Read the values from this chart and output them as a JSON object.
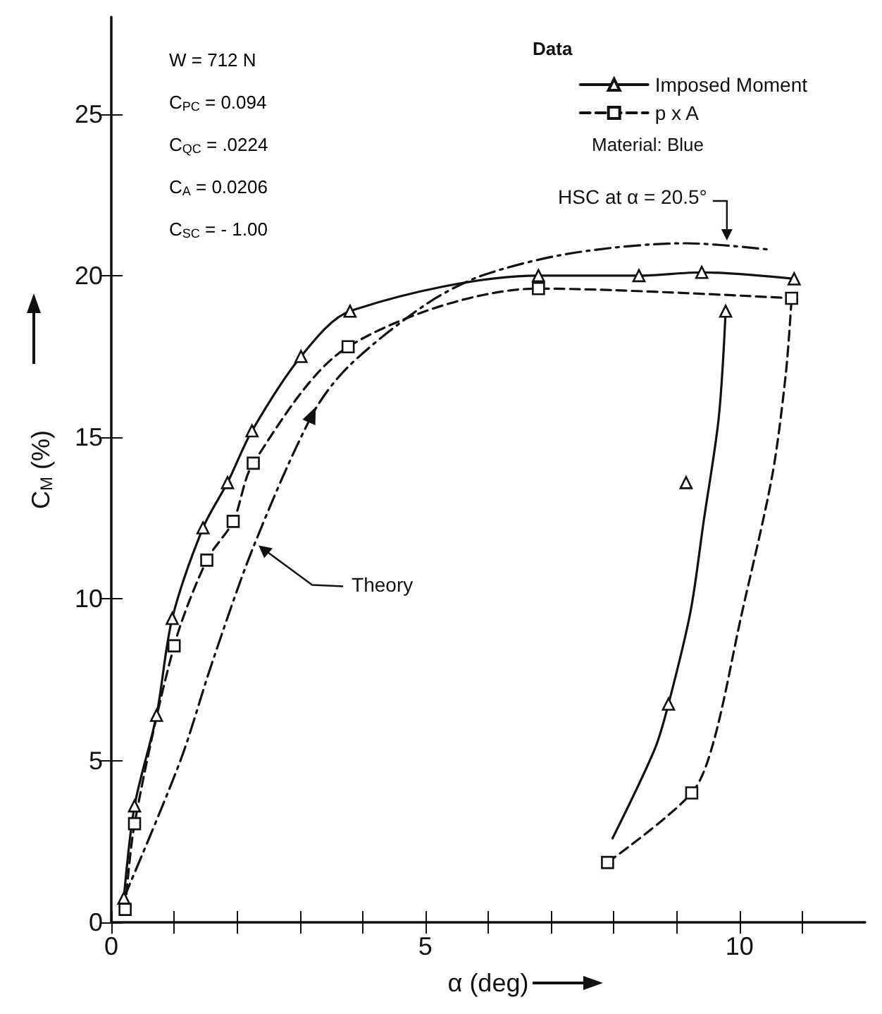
{
  "chart_data": {
    "type": "line",
    "xlabel": "α (deg)",
    "ylabel": "C$_{M}$ (%)",
    "legend_title": "Data",
    "xlim": [
      0,
      12
    ],
    "ylim": [
      0,
      28
    ],
    "xticks": [
      0,
      {
        "value": 1,
        "label": null
      },
      {
        "value": 2,
        "label": null
      },
      {
        "value": 3,
        "label": null
      },
      {
        "value": 4,
        "label": null
      },
      5,
      {
        "value": 6,
        "label": null
      },
      {
        "value": 7,
        "label": null
      },
      {
        "value": 8,
        "label": null
      },
      {
        "value": 9,
        "label": null
      },
      10,
      {
        "value": 11,
        "label": null
      }
    ],
    "yticks": [
      0,
      5,
      10,
      15,
      20,
      25
    ],
    "grid": false,
    "legend": "top right",
    "series": [
      {
        "name": "Imposed Moment",
        "color": "#111111",
        "marker": "triangle",
        "line_style": "solid",
        "x": [
          0.2,
          0.37,
          0.72,
          0.97,
          1.46,
          1.85,
          2.24,
          3.02,
          3.8,
          6.8,
          8.4,
          9.4,
          10.87
        ],
        "values": [
          0.75,
          3.6,
          6.4,
          9.4,
          12.2,
          13.6,
          15.2,
          17.5,
          18.9,
          20.0,
          20.0,
          20.1,
          19.9
        ]
      },
      {
        "name": "p x A",
        "color": "#111111",
        "marker": "square",
        "line_style": "dashed",
        "x": [
          0.22,
          0.37,
          1.0,
          1.52,
          1.94,
          2.26,
          3.77,
          6.8,
          10.83
        ],
        "values": [
          0.4,
          3.05,
          8.55,
          11.2,
          12.4,
          14.2,
          17.8,
          19.6,
          19.3
        ]
      },
      {
        "color": "#111111",
        "marker": "none",
        "line_style": "solid",
        "x": [
          7.98,
          8.65,
          8.87,
          9.22,
          9.43,
          9.67,
          9.78
        ],
        "values": [
          2.6,
          5.35,
          6.75,
          9.6,
          12.4,
          15.6,
          18.9
        ]
      },
      {
        "type": "scatter",
        "color": "#111111",
        "marker": "triangle",
        "x": [
          8.87,
          9.15,
          9.78
        ],
        "values": [
          6.75,
          13.6,
          18.9
        ]
      },
      {
        "color": "#111111",
        "marker": "none",
        "line_style": "dashed",
        "x": [
          7.9,
          9.24,
          9.59,
          10.02,
          10.52,
          10.74,
          10.83
        ],
        "values": [
          1.85,
          4.0,
          5.6,
          9.4,
          13.8,
          17.0,
          19.3
        ]
      },
      {
        "type": "scatter",
        "color": "#111111",
        "marker": "square",
        "x": [
          7.9,
          9.24
        ],
        "values": [
          1.85,
          4.0
        ]
      },
      {
        "color": "#111111",
        "marker": "none",
        "line_style": "dashdot",
        "x": [
          0.2,
          1.1,
          1.6,
          2.26,
          3.2,
          3.78,
          5.0,
          5.9,
          7.35,
          9.15,
          10.5
        ],
        "values": [
          0.75,
          5.0,
          8.0,
          11.6,
          15.7,
          17.2,
          19.1,
          20.0,
          20.7,
          21.0,
          20.8
        ]
      }
    ],
    "annotations": [
      "W = 712 N",
      "C$_{PC}$ = 0.094",
      "C$_{QC}$ = .0224",
      "C$_{A}$ = 0.0206",
      "C$_{SC}$ = - 1.00",
      "Material: Blue",
      {
        "text": "Theory",
        "x": 2.3,
        "y": 11.7
      },
      {
        "text": "HSC at α = 20.5°",
        "x": 9.8,
        "y": 21.0
      }
    ]
  }
}
